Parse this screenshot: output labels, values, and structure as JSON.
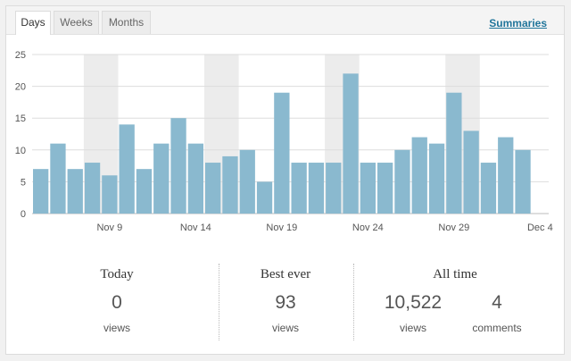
{
  "tabs": [
    {
      "label": "Days",
      "active": true
    },
    {
      "label": "Weeks",
      "active": false
    },
    {
      "label": "Months",
      "active": false
    }
  ],
  "summaries_link": "Summaries",
  "chart_data": {
    "type": "bar",
    "categories": [
      "Nov 5",
      "Nov 6",
      "Nov 7",
      "Nov 8",
      "Nov 9",
      "Nov 10",
      "Nov 11",
      "Nov 12",
      "Nov 13",
      "Nov 14",
      "Nov 15",
      "Nov 16",
      "Nov 17",
      "Nov 18",
      "Nov 19",
      "Nov 20",
      "Nov 21",
      "Nov 22",
      "Nov 23",
      "Nov 24",
      "Nov 25",
      "Nov 26",
      "Nov 27",
      "Nov 28",
      "Nov 29",
      "Nov 30",
      "Dec 1",
      "Dec 2",
      "Dec 3",
      "Dec 4"
    ],
    "values": [
      7,
      11,
      7,
      8,
      6,
      14,
      7,
      11,
      15,
      11,
      8,
      9,
      10,
      5,
      19,
      8,
      8,
      8,
      22,
      8,
      8,
      10,
      12,
      11,
      19,
      13,
      8,
      12,
      10,
      0
    ],
    "x_tick_labels": [
      "Nov 9",
      "Nov 14",
      "Nov 19",
      "Nov 24",
      "Nov 29",
      "Dec 4"
    ],
    "y_ticks": [
      0,
      5,
      10,
      15,
      20,
      25
    ],
    "ylim": [
      0,
      25
    ],
    "weekend_shading": true,
    "bar_color": "#8ab9cf",
    "weekend_color": "#ececec"
  },
  "stats": {
    "today": {
      "title": "Today",
      "value": "0",
      "label": "views"
    },
    "best_ever": {
      "title": "Best ever",
      "value": "93",
      "label": "views"
    },
    "all_time": {
      "title": "All time",
      "views_value": "10,522",
      "views_label": "views",
      "comments_value": "4",
      "comments_label": "comments"
    }
  }
}
